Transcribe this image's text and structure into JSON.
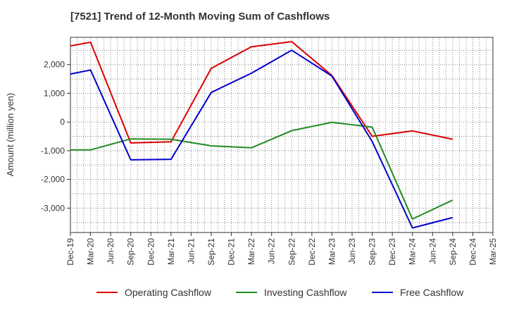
{
  "title": "[7521]  Trend of 12-Month Moving Sum of Cashflows",
  "chart_data": {
    "type": "line",
    "title": "[7521]  Trend of 12-Month Moving Sum of Cashflows",
    "xlabel": "",
    "ylabel": "Amount (million yen)",
    "categories": [
      "Dec-19",
      "Mar-20",
      "Jun-20",
      "Sep-20",
      "Dec-20",
      "Mar-21",
      "Jun-21",
      "Sep-21",
      "Dec-21",
      "Mar-22",
      "Jun-22",
      "Sep-22",
      "Dec-22",
      "Mar-23",
      "Jun-23",
      "Sep-23",
      "Dec-23",
      "Mar-24",
      "Jun-24",
      "Sep-24",
      "Dec-24",
      "Mar-25"
    ],
    "y_ticks": [
      2000,
      1000,
      0,
      -1000,
      -2000,
      -3000
    ],
    "y_tick_labels": [
      "2,000",
      "1,000",
      "0",
      "-1,000",
      "-2,000",
      "-3,000"
    ],
    "ylim": [
      -3850,
      2950
    ],
    "grid": true,
    "legend_position": "bottom",
    "series": [
      {
        "name": "Operating Cashflow",
        "color": "#dd0000",
        "values": [
          2650,
          2780,
          null,
          -730,
          null,
          -690,
          null,
          1870,
          null,
          2620,
          null,
          2800,
          null,
          1620,
          null,
          -500,
          null,
          -310,
          null,
          -600,
          null,
          null
        ]
      },
      {
        "name": "Investing Cashflow",
        "color": "#228b22",
        "values": [
          -970,
          -970,
          null,
          -590,
          null,
          -600,
          null,
          -830,
          null,
          -900,
          null,
          -300,
          null,
          -10,
          null,
          -180,
          null,
          -3380,
          null,
          -2720,
          null,
          null
        ]
      },
      {
        "name": "Free Cashflow",
        "color": "#0000cc",
        "values": [
          1670,
          1810,
          null,
          -1320,
          null,
          -1300,
          null,
          1030,
          null,
          1700,
          null,
          2500,
          null,
          1600,
          null,
          -680,
          null,
          -3690,
          null,
          -3330,
          null,
          null
        ]
      }
    ]
  }
}
